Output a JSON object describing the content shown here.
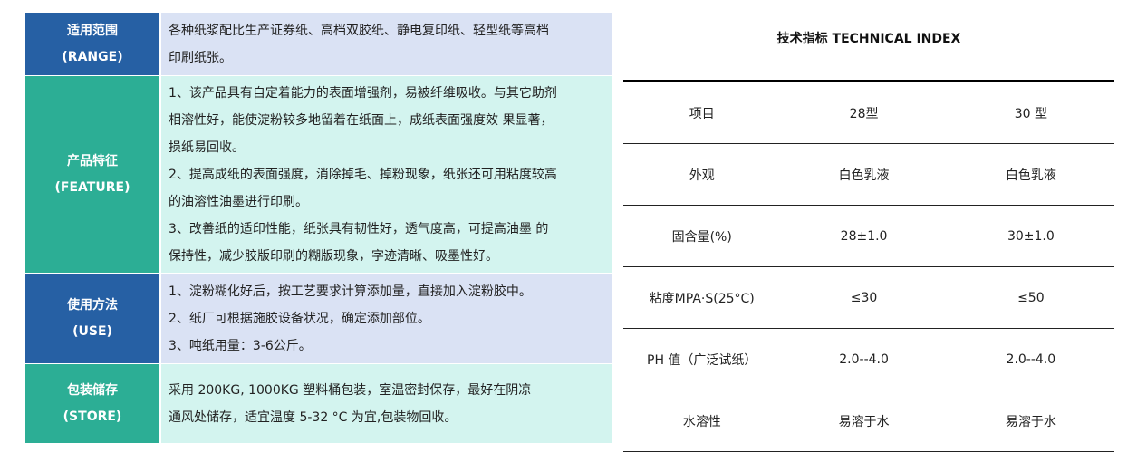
{
  "left": [
    {
      "label": "适用范围",
      "label_en": "(RANGE)",
      "lines": [
        "各种纸浆配比生产证券纸、高档双胶纸、静电复印纸、轻型纸等高档",
        "印刷纸张。"
      ]
    },
    {
      "label": "产品特征",
      "label_en": "(FEATURE)",
      "lines": [
        "1、该产品具有自定着能力的表面增强剂，易被纤维吸收。与其它助剂",
        "相溶性好，能使淀粉较多地留着在纸面上，成纸表面强度效 果显著，",
        "损纸易回收。",
        "2、提高成纸的表面强度，消除掉毛、掉粉现象，纸张还可用粘度较高",
        "的油溶性油墨进行印刷。",
        "3、改善纸的适印性能，纸张具有韧性好，透气度高，可提高油墨 的",
        "保持性，减少胶版印刷的糊版现象，字迹清晰、吸墨性好。"
      ]
    },
    {
      "label": "使用方法",
      "label_en": "(USE)",
      "lines": [
        "1、淀粉糊化好后，按工艺要求计算添加量，直接加入淀粉胶中。",
        "2、纸厂可根据施胶设备状况，确定添加部位。",
        "3、吨纸用量：3-6公斤。"
      ]
    },
    {
      "label": "包装储存",
      "label_en": "(STORE)",
      "lines": [
        "采用 200KG, 1000KG 塑料桶包装，室温密封保存，最好在阴凉",
        "通风处储存，适宜温度 5-32 °C 为宜,包装物回收。"
      ]
    }
  ],
  "right": {
    "title": "技术指标 TECHNICAL INDEX",
    "rows": [
      [
        "项目",
        "28型",
        "30 型"
      ],
      [
        "外观",
        "白色乳液",
        "白色乳液"
      ],
      [
        "固含量(%)",
        "28±1.0",
        "30±1.0"
      ],
      [
        "粘度MPA·S(25°C)",
        "≤30",
        "≤50"
      ],
      [
        "PH 值（广泛试纸）",
        "2.0--4.0",
        "2.0--4.0"
      ],
      [
        "水溶性",
        "易溶于水",
        "易溶于水"
      ]
    ]
  },
  "colors": {
    "blue": "#2660a4",
    "teal": "#2cae95",
    "light_blue": "#dae2f4",
    "light_teal": "#d3f4ef"
  }
}
